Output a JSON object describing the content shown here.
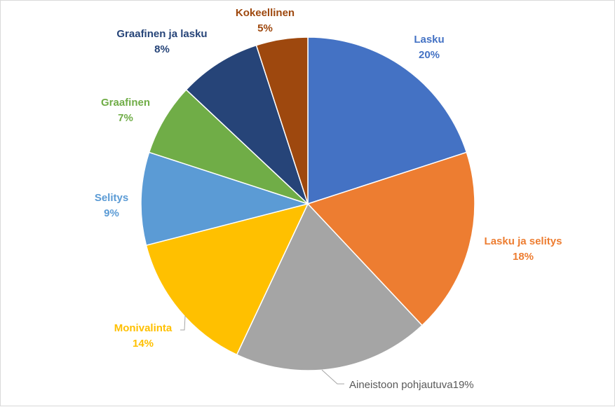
{
  "chart_data": {
    "type": "pie",
    "title": "",
    "slices": [
      {
        "label": "Lasku",
        "value": 20,
        "percent_text": "20%",
        "color": "#4472C4"
      },
      {
        "label": "Lasku ja selitys",
        "value": 18,
        "percent_text": "18%",
        "color": "#ED7D31"
      },
      {
        "label": "Aineistoon pohjautuva",
        "value": 19,
        "percent_text": "19%",
        "color": "#A5A5A5",
        "label_color": "#595959"
      },
      {
        "label": "Monivalinta",
        "value": 14,
        "percent_text": "14%",
        "color": "#FFC000"
      },
      {
        "label": "Selitys",
        "value": 9,
        "percent_text": "9%",
        "color": "#5B9BD5"
      },
      {
        "label": "Graafinen",
        "value": 7,
        "percent_text": "7%",
        "color": "#70AD47"
      },
      {
        "label": "Graafinen ja lasku",
        "value": 8,
        "percent_text": "8%",
        "color": "#264478"
      },
      {
        "label": "Kokeellinen",
        "value": 5,
        "percent_text": "5%",
        "color": "#9E480E"
      }
    ]
  }
}
